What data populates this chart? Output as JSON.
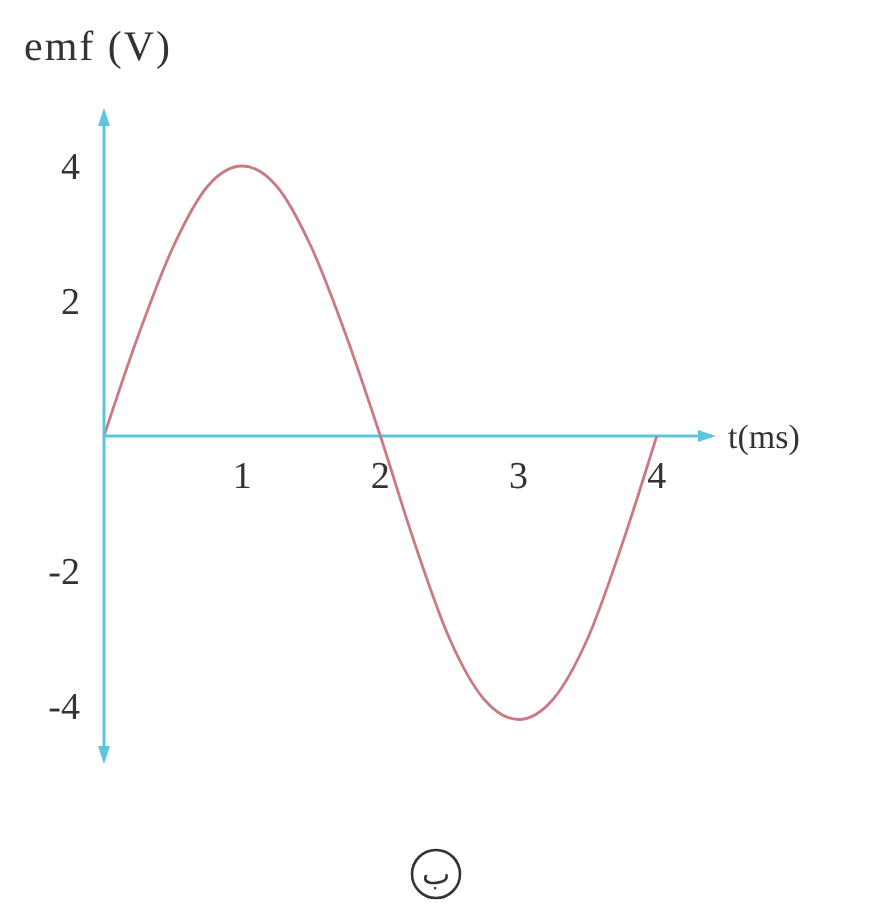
{
  "chart_data": {
    "type": "line",
    "xlabel": "t(ms)",
    "ylabel": "emf (V)",
    "x": [
      0,
      0.25,
      0.5,
      0.75,
      1,
      1.25,
      1.5,
      1.75,
      2,
      2.25,
      2.5,
      2.75,
      3,
      3.25,
      3.5,
      3.75,
      4
    ],
    "series": [
      {
        "color": "#c97a82",
        "values": [
          0,
          1.5,
          2.8,
          3.7,
          4,
          3.7,
          2.8,
          1.5,
          0,
          -1.6,
          -3,
          -3.9,
          -4.2,
          -3.9,
          -3,
          -1.6,
          0
        ]
      }
    ],
    "xlim": [
      0,
      4.4
    ],
    "ylim": [
      -4.8,
      4.8
    ],
    "xticks": [
      1,
      2,
      3,
      4
    ],
    "yticks": [
      -4,
      -2,
      2,
      4
    ],
    "marker": "none",
    "line_style": "solid",
    "annotations": [
      "ب"
    ]
  }
}
